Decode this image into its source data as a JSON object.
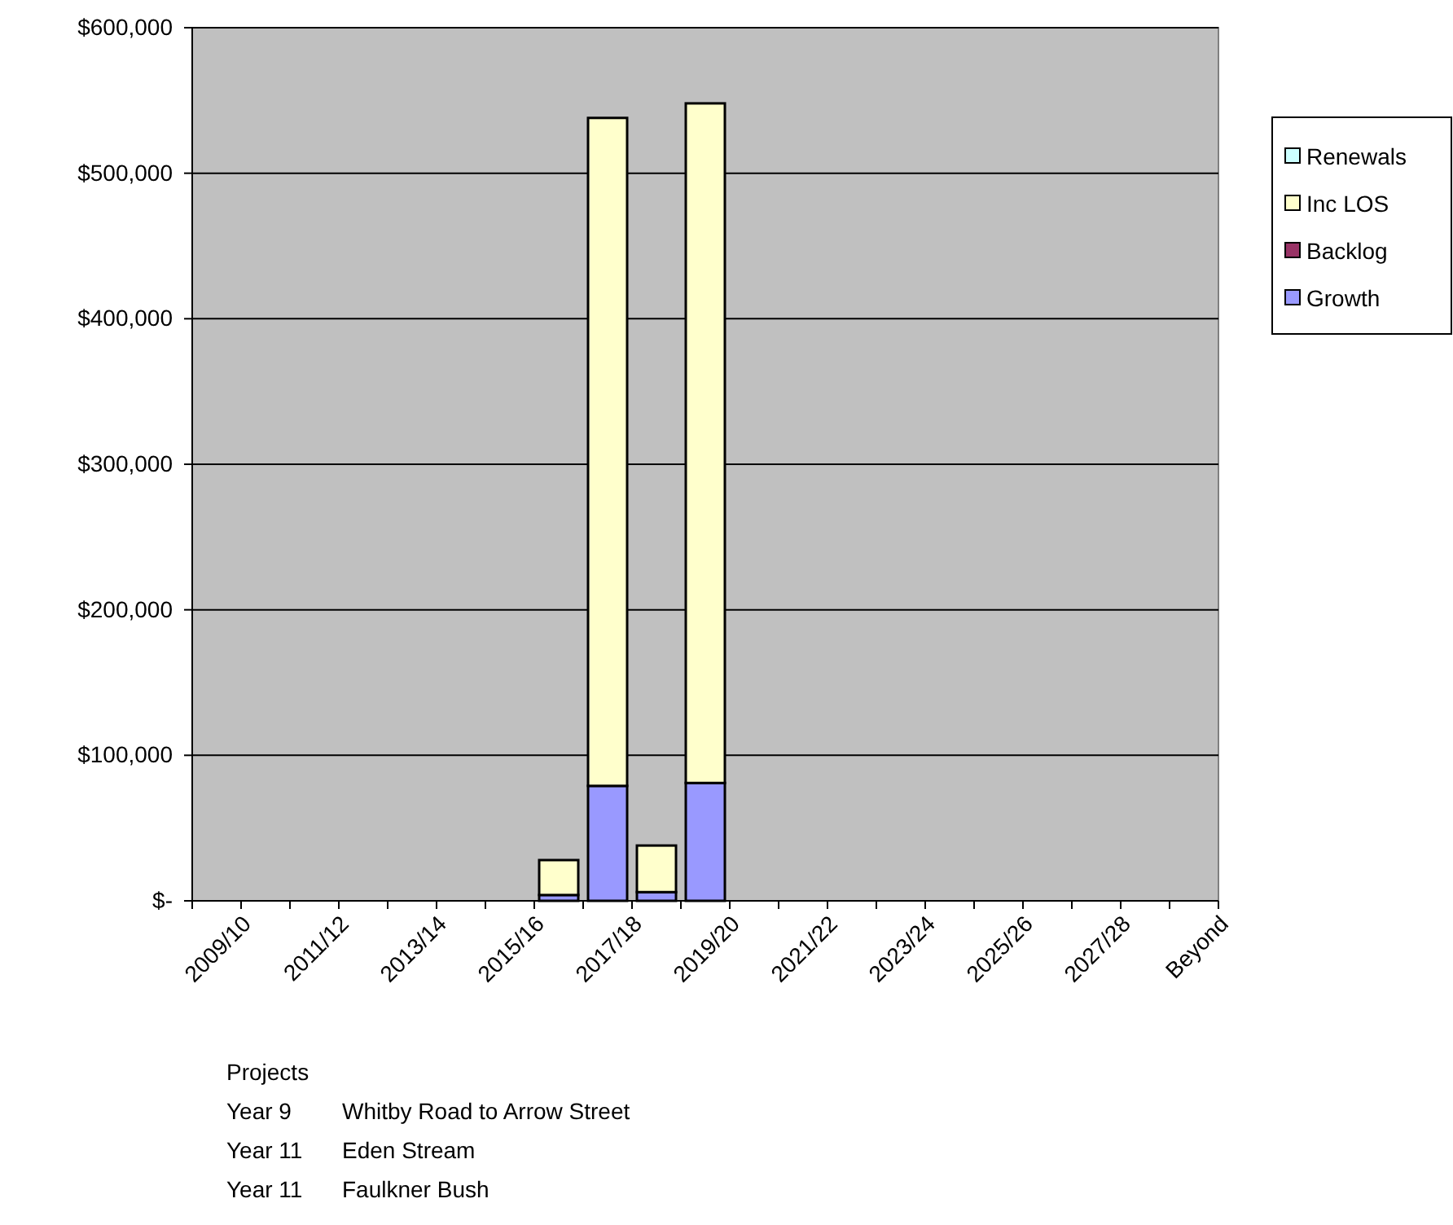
{
  "chart_data": {
    "type": "bar",
    "stacked": true,
    "categories": [
      "2009/10",
      null,
      "2011/12",
      null,
      "2013/14",
      null,
      "2015/16",
      null,
      "2017/18",
      null,
      "2019/20",
      null,
      "2021/22",
      null,
      "2023/24",
      null,
      "2025/26",
      null,
      "2027/28",
      null,
      "Beyond"
    ],
    "series": [
      {
        "name": "Growth",
        "color": "#9999ff",
        "values": [
          null,
          null,
          null,
          null,
          null,
          null,
          null,
          4000,
          79000,
          6000,
          81000,
          null,
          null,
          null,
          null,
          null,
          null,
          null,
          null,
          null,
          null
        ]
      },
      {
        "name": "Backlog",
        "color": "#993366",
        "values": [
          null,
          null,
          null,
          null,
          null,
          null,
          null,
          null,
          null,
          null,
          null,
          null,
          null,
          null,
          null,
          null,
          null,
          null,
          null,
          null,
          null
        ]
      },
      {
        "name": "Inc LOS",
        "color": "#ffffcc",
        "values": [
          null,
          null,
          null,
          null,
          null,
          null,
          null,
          24000,
          459000,
          32000,
          467000,
          null,
          null,
          null,
          null,
          null,
          null,
          null,
          null,
          null,
          null
        ]
      },
      {
        "name": "Renewals",
        "color": "#ccffff",
        "values": [
          null,
          null,
          null,
          null,
          null,
          null,
          null,
          null,
          null,
          null,
          null,
          null,
          null,
          null,
          null,
          null,
          null,
          null,
          null,
          null,
          null
        ]
      }
    ],
    "ylim": [
      0,
      600000
    ],
    "yticks": [
      {
        "value": 0,
        "label": "$-"
      },
      {
        "value": 100000,
        "label": "$100,000"
      },
      {
        "value": 200000,
        "label": "$200,000"
      },
      {
        "value": 300000,
        "label": "$300,000"
      },
      {
        "value": 400000,
        "label": "$400,000"
      },
      {
        "value": 500000,
        "label": "$500,000"
      },
      {
        "value": 600000,
        "label": "$600,000"
      }
    ],
    "grid": "y",
    "legend": "right",
    "annotations": [
      "Projects",
      "Year 9",
      "Whitby Road to Arrow Street",
      "Year 11",
      "Eden Stream",
      "Year 11",
      "Faulkner Bush"
    ]
  }
}
